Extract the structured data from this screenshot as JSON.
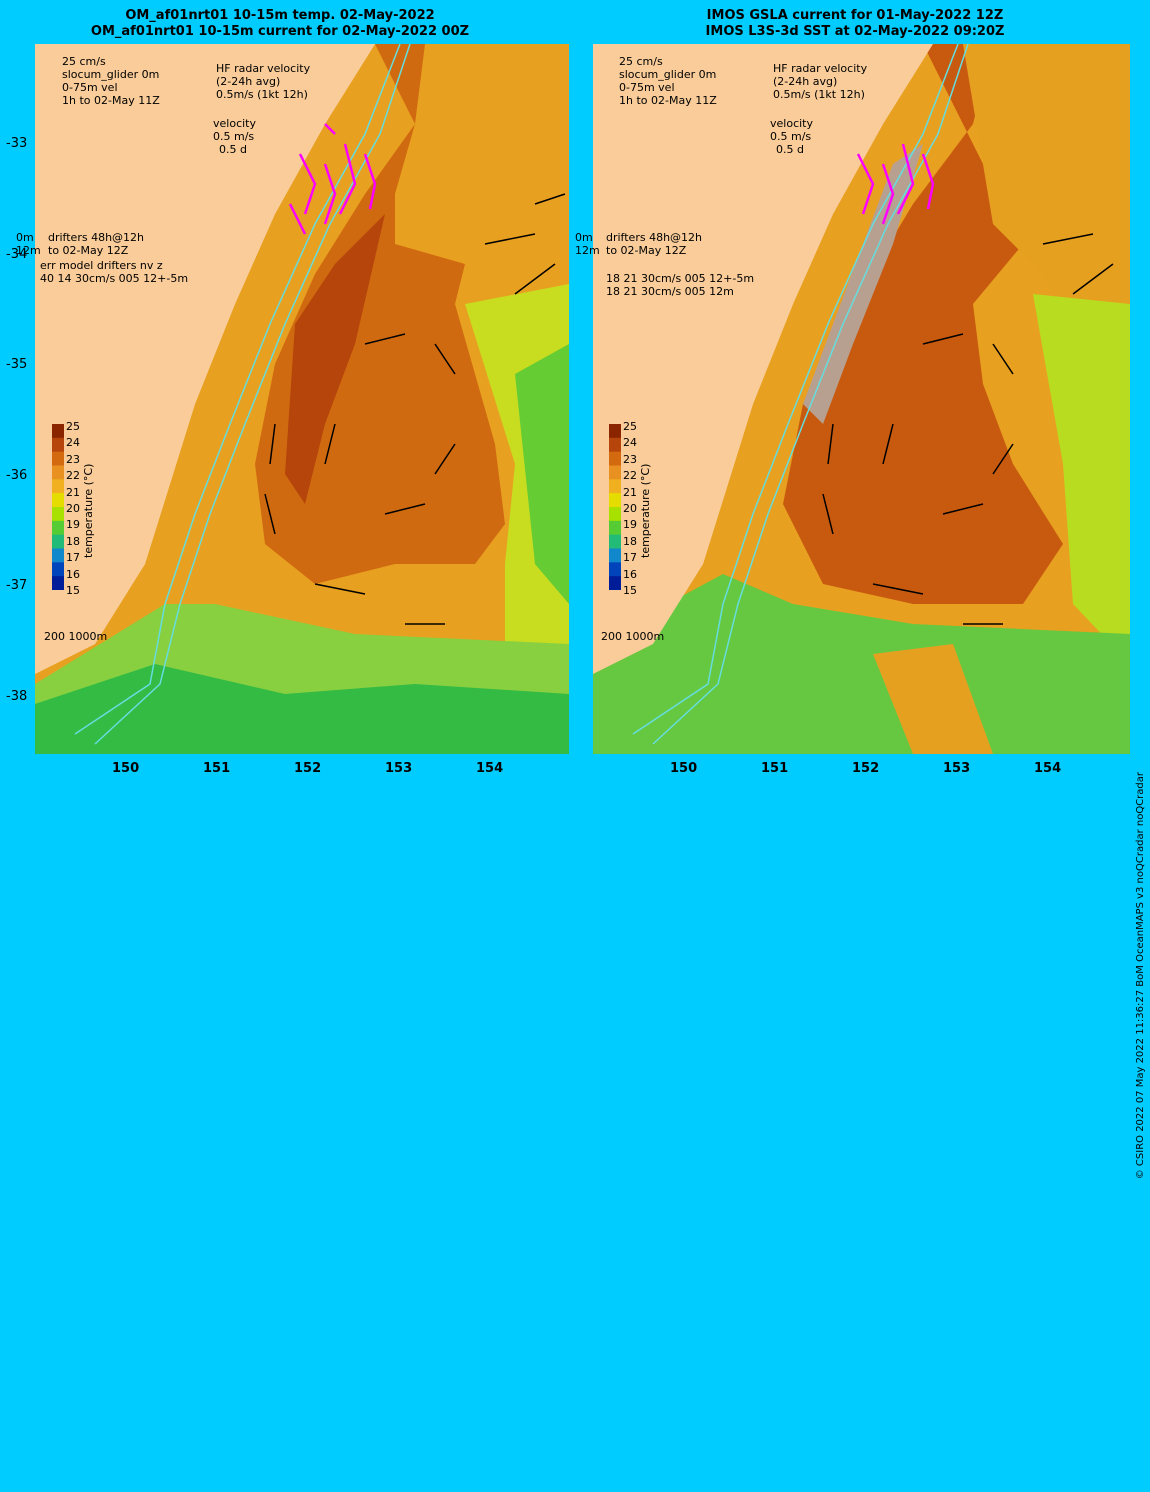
{
  "left_panel": {
    "title_line1": "OM_af01nrt01 10-15m temp. 02-May-2022",
    "title_line2": "OM_af01nrt01 10-15m current for 02-May-2022 00Z",
    "legend": {
      "scale": "25 cm/s",
      "glider": "slocum_glider 0m",
      "vel": "0-75m vel",
      "time": "1h to 02-May 11Z",
      "hf_title": "HF radar velocity",
      "hf_avg": "(2-24h avg)",
      "hf_scale": "0.5m/s (1kt 12h)",
      "velocity": "velocity",
      "velocity_scale": "0.5 m/s",
      "velocity_days": "0.5 d",
      "drifters_0m": "0m",
      "drifters": "drifters 48h@12h",
      "drifters_12m": "12m",
      "drifters_time": "to 02-May 12Z",
      "err1": "err model drifters nv z",
      "err2": "40 14 30cm/s 005 12+-5m",
      "isobath": "200 1000m"
    }
  },
  "right_panel": {
    "title_line1": "IMOS GSLA current for 01-May-2022 12Z",
    "title_line2": "IMOS L3S-3d SST at 02-May-2022 09:20Z",
    "legend": {
      "scale": "25 cm/s",
      "glider": "slocum_glider 0m",
      "vel": "0-75m vel",
      "time": "1h to 02-May 11Z",
      "hf_title": "HF radar velocity",
      "hf_avg": "(2-24h avg)",
      "hf_scale": "0.5m/s (1kt 12h)",
      "velocity": "velocity",
      "velocity_scale": "0.5 m/s",
      "velocity_days": "0.5 d",
      "drifters_0m": "0m",
      "drifters": "drifters 48h@12h",
      "drifters_12m": "12m",
      "drifters_time": "to 02-May 12Z",
      "err1": "18 21 30cm/s 005 12+-5m",
      "err2": "18 21 30cm/s 005 12m",
      "isobath": "200 1000m"
    }
  },
  "axes": {
    "lat_ticks": [
      "-33",
      "-34",
      "-35",
      "-36",
      "-37",
      "-38"
    ],
    "lon_ticks": [
      "150",
      "151",
      "152",
      "153",
      "154"
    ]
  },
  "colorbar": {
    "label": "temperature (°C)",
    "ticks": [
      "25",
      "24",
      "23",
      "22",
      "21",
      "20",
      "19",
      "18",
      "17",
      "16",
      "15"
    ],
    "colors": [
      "#8b2500",
      "#b5450a",
      "#d46a10",
      "#e89020",
      "#f0b020",
      "#e6dd00",
      "#a8e000",
      "#55cc33",
      "#22bb77",
      "#1188cc",
      "#0044bb",
      "#001d99"
    ]
  },
  "credit": "© CSIRO 2022   07 May 2022 11:36:27 BoM OceanMAPS v3 noQCradar noQCradar",
  "colors": {
    "land": "#f9cc99",
    "background": "#00ccff",
    "glider": "#ff00ff",
    "vel_arrow": "#0000cc",
    "isobath": "#66dddd"
  }
}
